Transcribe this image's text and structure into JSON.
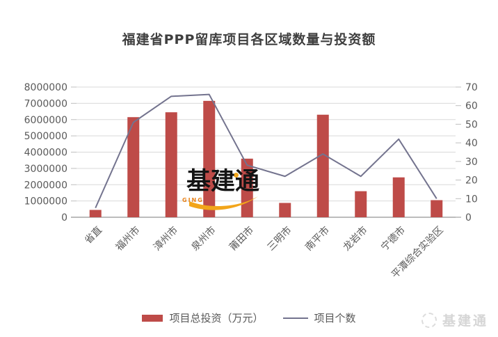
{
  "title": "福建省PPP留库项目各区域数量与投资额",
  "watermark": {
    "text": "基建通",
    "subtext": "GING",
    "accent_color": "#F2A51A",
    "text_color": "#141414",
    "subtext_color": "#E8821A"
  },
  "brand": {
    "text": "基建通",
    "color": "#d6d6d6"
  },
  "legend": {
    "items": [
      {
        "label": "项目总投资（万元）",
        "marker": "bar-swatch",
        "color": "#BE4B48"
      },
      {
        "label": "项目个数",
        "marker": "line-swatch",
        "color": "#73738E"
      }
    ]
  },
  "chart_data": {
    "type": "bar",
    "subtype": "bar+line dual axis",
    "title": "福建省PPP留库项目各区域数量与投资额",
    "categories": [
      "省直",
      "福州市",
      "漳州市",
      "泉州市",
      "莆田市",
      "三明市",
      "南平市",
      "龙岩市",
      "宁德市",
      "平潭综合实验区"
    ],
    "series": [
      {
        "name": "项目总投资（万元）",
        "type": "bar",
        "axis": "left",
        "color": "#BE4B48",
        "values": [
          450000,
          6150000,
          6450000,
          7150000,
          3600000,
          880000,
          6300000,
          1600000,
          2450000,
          1050000
        ]
      },
      {
        "name": "项目个数",
        "type": "line",
        "axis": "right",
        "color": "#73738E",
        "values": [
          5,
          51,
          65,
          66,
          28,
          22,
          34,
          22,
          42,
          10
        ]
      }
    ],
    "left_axis": {
      "min": 0,
      "max": 8000000,
      "step": 1000000,
      "tick_labels": [
        "0",
        "1000000",
        "2000000",
        "3000000",
        "4000000",
        "5000000",
        "6000000",
        "7000000",
        "8000000"
      ]
    },
    "right_axis": {
      "min": 0,
      "max": 70,
      "step": 10,
      "tick_labels": [
        "0",
        "10",
        "20",
        "30",
        "40",
        "50",
        "60",
        "70"
      ]
    },
    "grid": "horizontal",
    "grid_color": "#D9D9D9",
    "axis_text_color": "#595959",
    "legend_position": "bottom"
  }
}
